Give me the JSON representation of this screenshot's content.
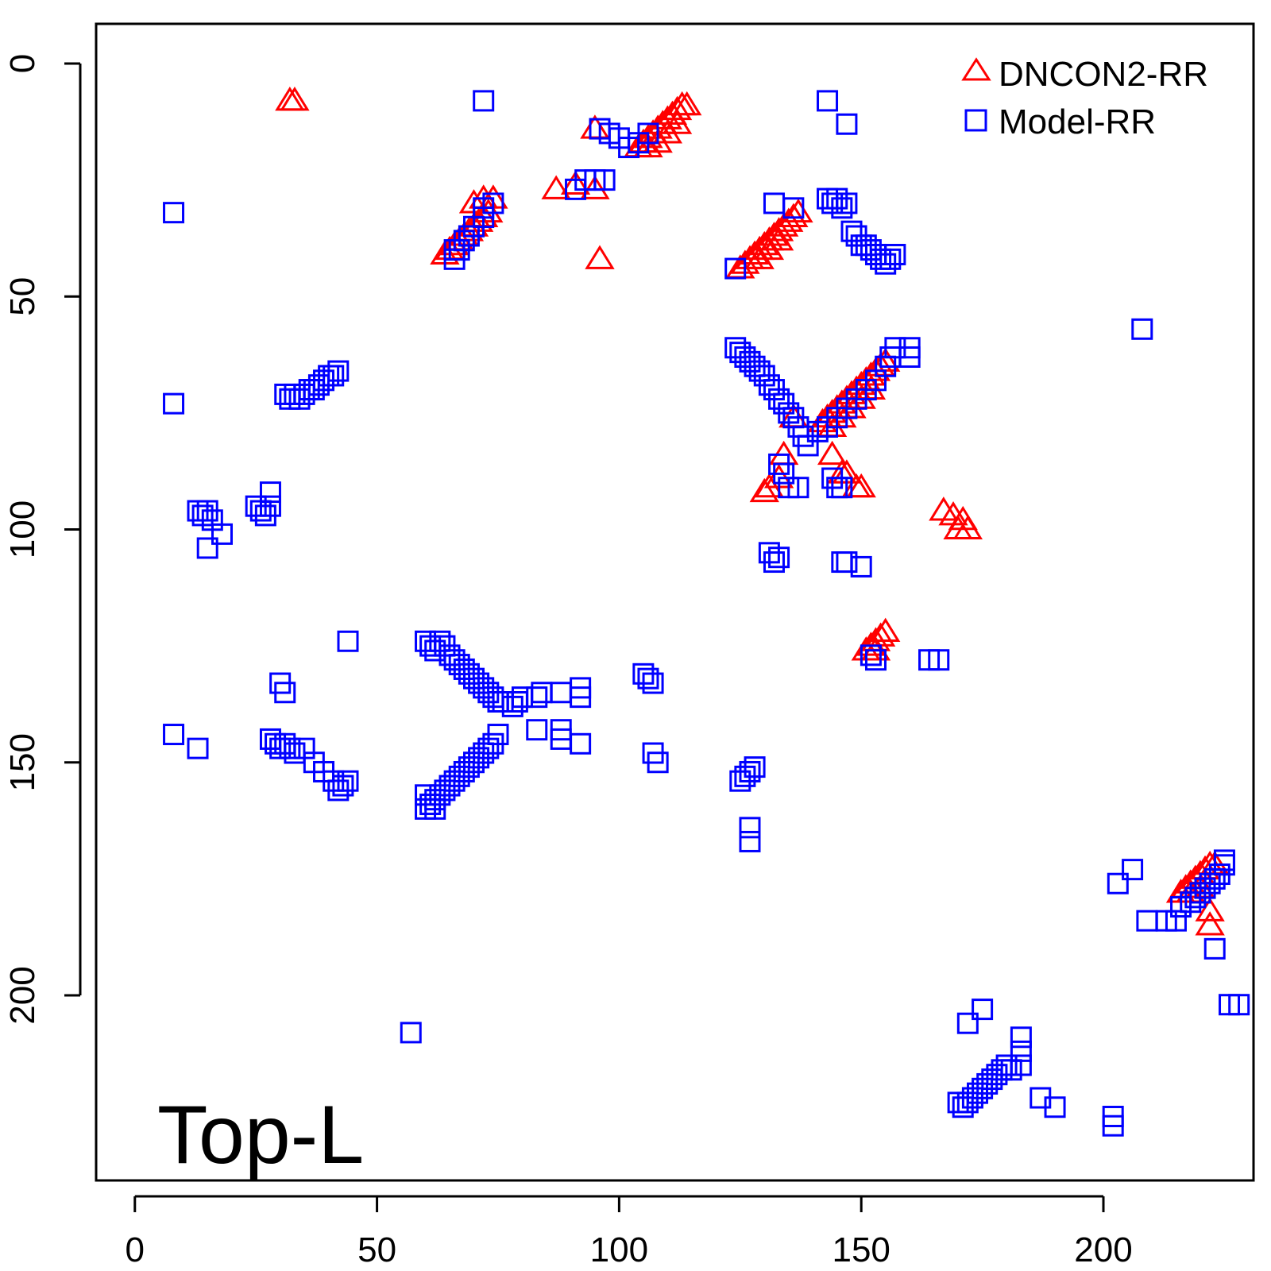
{
  "chart_data": {
    "type": "scatter",
    "title": "",
    "xlabel": "",
    "ylabel": "",
    "xlim": [
      -8,
      231
    ],
    "ylim": [
      0,
      237
    ],
    "y_reversed": true,
    "x_ticks": [
      "0",
      "50",
      "100",
      "150",
      "200"
    ],
    "y_ticks": [
      "0",
      "50",
      "100",
      "150",
      "200"
    ],
    "grid": false,
    "legend_position": "top-right",
    "panel_label": "Top-L",
    "series": [
      {
        "name": "DNCON2-RR",
        "marker": "triangle",
        "color": "#ff0000",
        "points": [
          [
            32,
            8
          ],
          [
            33,
            8
          ],
          [
            95,
            14
          ],
          [
            87,
            27
          ],
          [
            91,
            26
          ],
          [
            95,
            27
          ],
          [
            96,
            42
          ],
          [
            64,
            41
          ],
          [
            65,
            40
          ],
          [
            66,
            39
          ],
          [
            67,
            38
          ],
          [
            68,
            37
          ],
          [
            69,
            36
          ],
          [
            70,
            35
          ],
          [
            71,
            34
          ],
          [
            72,
            33
          ],
          [
            73,
            32
          ],
          [
            72,
            29
          ],
          [
            74,
            29
          ],
          [
            70,
            30
          ],
          [
            104,
            18
          ],
          [
            105,
            17
          ],
          [
            106,
            16
          ],
          [
            107,
            15
          ],
          [
            108,
            14
          ],
          [
            109,
            13
          ],
          [
            110,
            12
          ],
          [
            111,
            11
          ],
          [
            112,
            10
          ],
          [
            113,
            9
          ],
          [
            114,
            9
          ],
          [
            106,
            18
          ],
          [
            108,
            17
          ],
          [
            110,
            15
          ],
          [
            112,
            13
          ],
          [
            125,
            44
          ],
          [
            126,
            43
          ],
          [
            127,
            42
          ],
          [
            128,
            41
          ],
          [
            129,
            40
          ],
          [
            130,
            39
          ],
          [
            131,
            38
          ],
          [
            132,
            37
          ],
          [
            133,
            36
          ],
          [
            134,
            35
          ],
          [
            135,
            34
          ],
          [
            136,
            33
          ],
          [
            137,
            32
          ],
          [
            129,
            42
          ],
          [
            131,
            40
          ],
          [
            133,
            38
          ],
          [
            142,
            77
          ],
          [
            143,
            76
          ],
          [
            144,
            75
          ],
          [
            145,
            74
          ],
          [
            146,
            73
          ],
          [
            147,
            72
          ],
          [
            148,
            71
          ],
          [
            149,
            70
          ],
          [
            150,
            69
          ],
          [
            151,
            68
          ],
          [
            152,
            67
          ],
          [
            153,
            66
          ],
          [
            154,
            65
          ],
          [
            155,
            64
          ],
          [
            144,
            78
          ],
          [
            146,
            76
          ],
          [
            148,
            74
          ],
          [
            150,
            72
          ],
          [
            152,
            70
          ],
          [
            136,
            76
          ],
          [
            134,
            84
          ],
          [
            133,
            89
          ],
          [
            130,
            92
          ],
          [
            131,
            91
          ],
          [
            144,
            84
          ],
          [
            146,
            88
          ],
          [
            147,
            88
          ],
          [
            149,
            91
          ],
          [
            150,
            91
          ],
          [
            167,
            96
          ],
          [
            169,
            97
          ],
          [
            171,
            98
          ],
          [
            170,
            100
          ],
          [
            172,
            100
          ],
          [
            151,
            126
          ],
          [
            152,
            125
          ],
          [
            153,
            124
          ],
          [
            154,
            123
          ],
          [
            155,
            122
          ],
          [
            153,
            126
          ],
          [
            216,
            178
          ],
          [
            217,
            177
          ],
          [
            218,
            176
          ],
          [
            219,
            175
          ],
          [
            220,
            174
          ],
          [
            221,
            173
          ],
          [
            222,
            172
          ],
          [
            223,
            172
          ],
          [
            218,
            178
          ],
          [
            220,
            177
          ],
          [
            222,
            182
          ],
          [
            222,
            185
          ]
        ]
      },
      {
        "name": "Model-RR",
        "marker": "square",
        "color": "#0000ff",
        "points": [
          [
            72,
            8
          ],
          [
            143,
            8
          ],
          [
            147,
            13
          ],
          [
            8,
            32
          ],
          [
            8,
            73
          ],
          [
            208,
            57
          ],
          [
            96,
            14
          ],
          [
            98,
            15
          ],
          [
            100,
            16
          ],
          [
            102,
            18
          ],
          [
            104,
            17
          ],
          [
            106,
            15
          ],
          [
            91,
            27
          ],
          [
            93,
            25
          ],
          [
            95,
            25
          ],
          [
            97,
            25
          ],
          [
            66,
            42
          ],
          [
            67,
            40
          ],
          [
            68,
            38
          ],
          [
            69,
            37
          ],
          [
            70,
            35
          ],
          [
            72,
            33
          ],
          [
            72,
            31
          ],
          [
            74,
            30
          ],
          [
            66,
            40
          ],
          [
            124,
            44
          ],
          [
            132,
            30
          ],
          [
            136,
            31
          ],
          [
            143,
            29
          ],
          [
            144,
            30
          ],
          [
            145,
            29
          ],
          [
            146,
            31
          ],
          [
            147,
            30
          ],
          [
            148,
            36
          ],
          [
            149,
            37
          ],
          [
            150,
            39
          ],
          [
            151,
            39
          ],
          [
            152,
            40
          ],
          [
            153,
            41
          ],
          [
            154,
            42
          ],
          [
            155,
            43
          ],
          [
            156,
            42
          ],
          [
            157,
            41
          ],
          [
            31,
            71
          ],
          [
            32,
            72
          ],
          [
            33,
            71
          ],
          [
            34,
            72
          ],
          [
            35,
            71
          ],
          [
            36,
            70
          ],
          [
            37,
            70
          ],
          [
            38,
            69
          ],
          [
            39,
            68
          ],
          [
            40,
            67
          ],
          [
            41,
            67
          ],
          [
            42,
            66
          ],
          [
            124,
            61
          ],
          [
            125,
            62
          ],
          [
            126,
            63
          ],
          [
            127,
            64
          ],
          [
            128,
            65
          ],
          [
            129,
            66
          ],
          [
            130,
            67
          ],
          [
            131,
            69
          ],
          [
            132,
            70
          ],
          [
            133,
            72
          ],
          [
            134,
            73
          ],
          [
            135,
            75
          ],
          [
            136,
            76
          ],
          [
            137,
            78
          ],
          [
            138,
            80
          ],
          [
            139,
            82
          ],
          [
            141,
            79
          ],
          [
            143,
            78
          ],
          [
            145,
            76
          ],
          [
            147,
            74
          ],
          [
            149,
            72
          ],
          [
            151,
            70
          ],
          [
            153,
            68
          ],
          [
            155,
            65
          ],
          [
            156,
            63
          ],
          [
            157,
            61
          ],
          [
            160,
            61
          ],
          [
            160,
            63
          ],
          [
            133,
            86
          ],
          [
            134,
            88
          ],
          [
            135,
            91
          ],
          [
            137,
            91
          ],
          [
            144,
            89
          ],
          [
            145,
            91
          ],
          [
            146,
            91
          ],
          [
            13,
            96
          ],
          [
            14,
            97
          ],
          [
            15,
            96
          ],
          [
            16,
            98
          ],
          [
            18,
            101
          ],
          [
            15,
            104
          ],
          [
            25,
            95
          ],
          [
            26,
            96
          ],
          [
            27,
            97
          ],
          [
            28,
            95
          ],
          [
            28,
            92
          ],
          [
            131,
            105
          ],
          [
            132,
            107
          ],
          [
            133,
            106
          ],
          [
            146,
            107
          ],
          [
            147,
            107
          ],
          [
            150,
            108
          ],
          [
            44,
            124
          ],
          [
            60,
            124
          ],
          [
            61,
            125
          ],
          [
            62,
            126
          ],
          [
            63,
            124
          ],
          [
            64,
            125
          ],
          [
            65,
            127
          ],
          [
            66,
            128
          ],
          [
            67,
            129
          ],
          [
            68,
            130
          ],
          [
            69,
            131
          ],
          [
            70,
            132
          ],
          [
            71,
            133
          ],
          [
            72,
            134
          ],
          [
            73,
            135
          ],
          [
            74,
            136
          ],
          [
            75,
            137
          ],
          [
            76,
            137
          ],
          [
            78,
            138
          ],
          [
            79,
            137
          ],
          [
            80,
            136
          ],
          [
            83,
            136
          ],
          [
            84,
            135
          ],
          [
            88,
            135
          ],
          [
            92,
            134
          ],
          [
            92,
            136
          ],
          [
            88,
            143
          ],
          [
            83,
            143
          ],
          [
            88,
            145
          ],
          [
            92,
            146
          ],
          [
            105,
            131
          ],
          [
            106,
            132
          ],
          [
            107,
            133
          ],
          [
            107,
            148
          ],
          [
            108,
            150
          ],
          [
            152,
            127
          ],
          [
            153,
            128
          ],
          [
            164,
            128
          ],
          [
            166,
            128
          ],
          [
            30,
            133
          ],
          [
            31,
            135
          ],
          [
            28,
            145
          ],
          [
            29,
            146
          ],
          [
            30,
            147
          ],
          [
            31,
            146
          ],
          [
            32,
            147
          ],
          [
            33,
            148
          ],
          [
            35,
            147
          ],
          [
            37,
            150
          ],
          [
            39,
            152
          ],
          [
            41,
            154
          ],
          [
            42,
            156
          ],
          [
            43,
            155
          ],
          [
            44,
            154
          ],
          [
            8,
            144
          ],
          [
            13,
            147
          ],
          [
            60,
            157
          ],
          [
            61,
            159
          ],
          [
            62,
            158
          ],
          [
            63,
            157
          ],
          [
            64,
            156
          ],
          [
            65,
            155
          ],
          [
            66,
            154
          ],
          [
            67,
            153
          ],
          [
            68,
            152
          ],
          [
            69,
            151
          ],
          [
            70,
            150
          ],
          [
            71,
            149
          ],
          [
            72,
            148
          ],
          [
            73,
            147
          ],
          [
            74,
            146
          ],
          [
            75,
            144
          ],
          [
            62,
            160
          ],
          [
            60,
            160
          ],
          [
            125,
            154
          ],
          [
            126,
            153
          ],
          [
            127,
            152
          ],
          [
            128,
            151
          ],
          [
            127,
            164
          ],
          [
            127,
            167
          ],
          [
            57,
            208
          ],
          [
            172,
            206
          ],
          [
            175,
            203
          ],
          [
            170,
            223
          ],
          [
            171,
            224
          ],
          [
            172,
            223
          ],
          [
            173,
            222
          ],
          [
            174,
            221
          ],
          [
            175,
            220
          ],
          [
            176,
            219
          ],
          [
            177,
            218
          ],
          [
            178,
            217
          ],
          [
            179,
            216
          ],
          [
            180,
            215
          ],
          [
            181,
            216
          ],
          [
            183,
            215
          ],
          [
            183,
            212
          ],
          [
            183,
            209
          ],
          [
            187,
            222
          ],
          [
            190,
            224
          ],
          [
            202,
            226
          ],
          [
            202,
            228
          ],
          [
            203,
            176
          ],
          [
            206,
            173
          ],
          [
            209,
            184
          ],
          [
            213,
            184
          ],
          [
            215,
            184
          ],
          [
            216,
            181
          ],
          [
            218,
            180
          ],
          [
            219,
            179
          ],
          [
            220,
            178
          ],
          [
            221,
            177
          ],
          [
            222,
            176
          ],
          [
            223,
            175
          ],
          [
            224,
            174
          ],
          [
            225,
            172
          ],
          [
            225,
            171
          ],
          [
            223,
            190
          ],
          [
            226,
            202
          ],
          [
            228,
            202
          ]
        ]
      }
    ]
  }
}
